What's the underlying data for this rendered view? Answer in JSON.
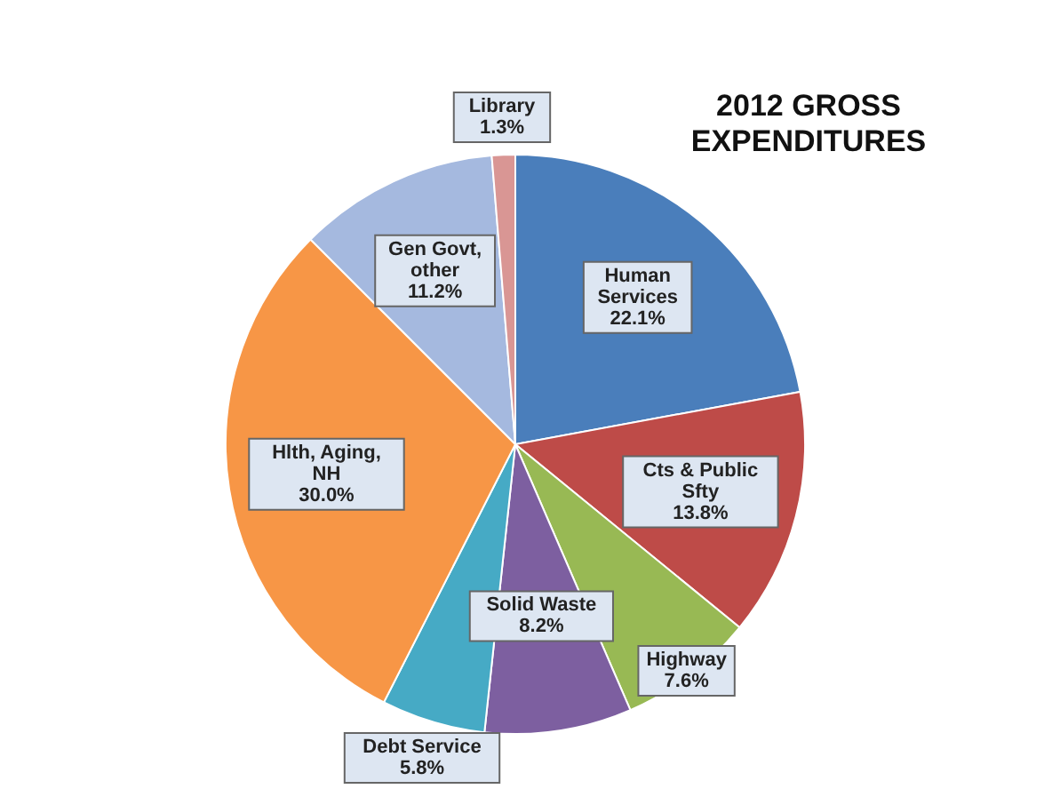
{
  "chart_data": {
    "type": "pie",
    "title": "2012 GROSS\nEXPENDITURES",
    "categories": [
      "Human\nServices",
      "Cts & Public\nSfty",
      "Highway",
      "Solid Waste",
      "Debt Service",
      "Hlth, Aging,\nNH",
      "Gen Govt,\nother",
      "Library"
    ],
    "values": [
      22.1,
      13.8,
      7.6,
      8.2,
      5.8,
      30.0,
      11.2,
      1.3
    ],
    "value_labels": [
      "22.1%",
      "13.8%",
      "7.6%",
      "8.2%",
      "5.8%",
      "30.0%",
      "11.2%",
      "1.3%"
    ],
    "colors": [
      "#4a7ebb",
      "#be4b48",
      "#98b954",
      "#7d5fa0",
      "#46aac5",
      "#f79646",
      "#a5b9df",
      "#d99694"
    ]
  }
}
